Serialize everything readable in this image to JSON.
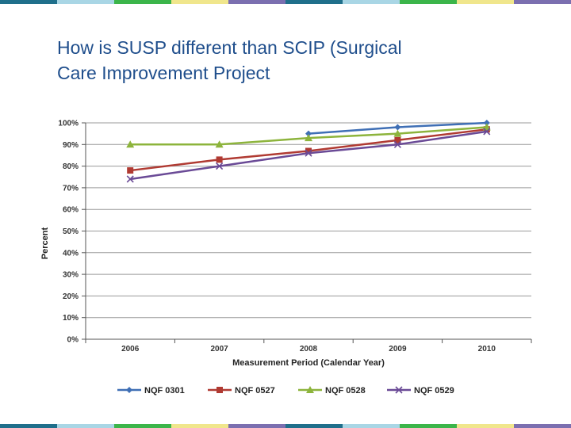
{
  "slide": {
    "title_line1": "How is SUSP different than SCIP (Surgical",
    "title_line2": "Care Improvement Project",
    "stripe_colors": [
      "#1f6f8b",
      "#a9d6e5",
      "#3bb54a",
      "#f0e68c",
      "#7b6fb0",
      "#1f6f8b",
      "#a9d6e5",
      "#3bb54a",
      "#f0e68c",
      "#7b6fb0"
    ]
  },
  "chart_data": {
    "type": "line",
    "x": [
      "2006",
      "2007",
      "2008",
      "2009",
      "2010"
    ],
    "xlabel": "Measurement Period (Calendar Year)",
    "ylabel": "Percent",
    "ylim": [
      0,
      100
    ],
    "yticks": [
      "0%",
      "10%",
      "20%",
      "30%",
      "40%",
      "50%",
      "60%",
      "70%",
      "80%",
      "90%",
      "100%"
    ],
    "grid": true,
    "legend": "bottom",
    "series": [
      {
        "name": "NQF 0301",
        "color": "#3f6fb5",
        "marker": "diamond",
        "values": [
          null,
          null,
          95,
          98,
          100
        ]
      },
      {
        "name": "NQF 0527",
        "color": "#b03a32",
        "marker": "square",
        "values": [
          78,
          83,
          87,
          92,
          97
        ]
      },
      {
        "name": "NQF 0528",
        "color": "#8db43c",
        "marker": "triangle",
        "values": [
          90,
          90,
          93,
          95,
          98
        ]
      },
      {
        "name": "NQF 0529",
        "color": "#6a4a96",
        "marker": "x",
        "values": [
          74,
          80,
          86,
          90,
          96
        ]
      }
    ]
  }
}
